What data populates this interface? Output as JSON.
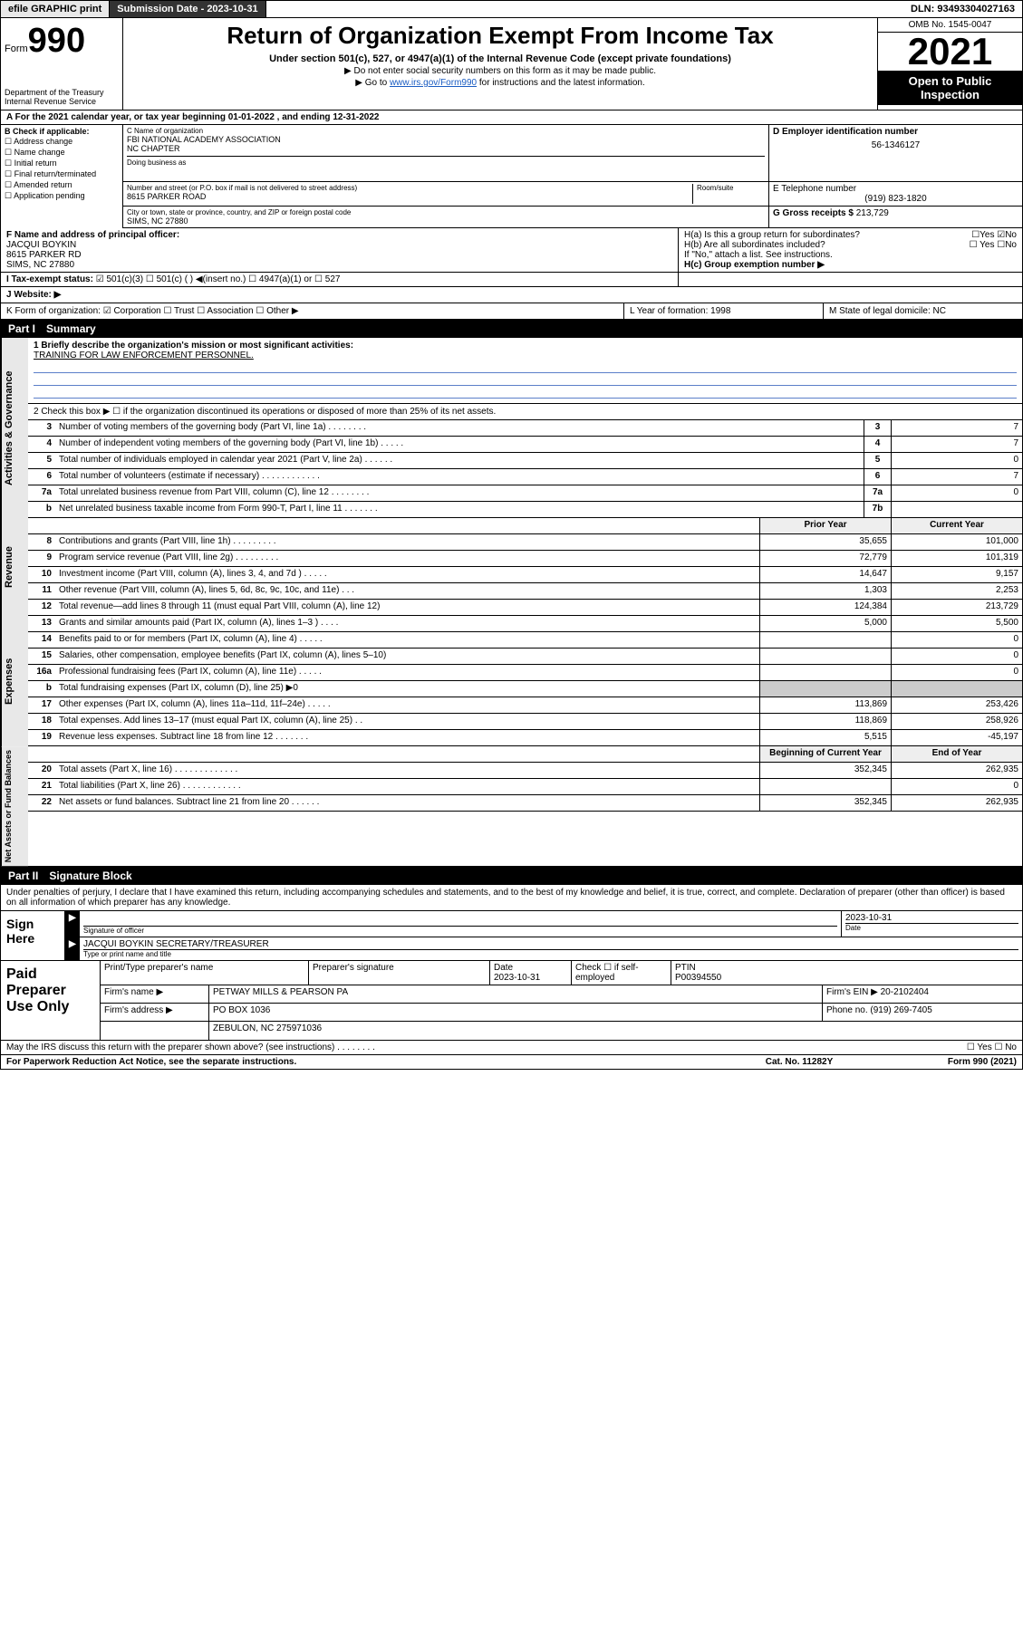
{
  "header_bar": {
    "efile": "efile GRAPHIC print",
    "sub_label": "Submission Date - 2023-10-31",
    "dln": "DLN: 93493304027163"
  },
  "form_head": {
    "form_word": "Form",
    "form_num": "990",
    "dept": "Department of the Treasury",
    "irs": "Internal Revenue Service",
    "title": "Return of Organization Exempt From Income Tax",
    "subtitle": "Under section 501(c), 527, or 4947(a)(1) of the Internal Revenue Code (except private foundations)",
    "note1": "▶ Do not enter social security numbers on this form as it may be made public.",
    "note2_a": "▶ Go to ",
    "note2_link": "www.irs.gov/Form990",
    "note2_b": " for instructions and the latest information.",
    "omb": "OMB No. 1545-0047",
    "year": "2021",
    "inspect": "Open to Public Inspection"
  },
  "row_a": "A For the 2021 calendar year, or tax year beginning 01-01-2022  , and ending 12-31-2022",
  "section_b": {
    "label": "B Check if applicable:",
    "items": [
      "☐ Address change",
      "☐ Name change",
      "☐ Initial return",
      "☐ Final return/terminated",
      "☐ Amended return",
      "☐ Application pending"
    ]
  },
  "section_c": {
    "name_label": "C Name of organization",
    "name": "FBI NATIONAL ACADEMY ASSOCIATION",
    "name2": "NC CHAPTER",
    "dba_label": "Doing business as",
    "addr_label": "Number and street (or P.O. box if mail is not delivered to street address)",
    "room_label": "Room/suite",
    "addr": "8615 PARKER ROAD",
    "city_label": "City or town, state or province, country, and ZIP or foreign postal code",
    "city": "SIMS, NC  27880"
  },
  "section_de": {
    "d_label": "D Employer identification number",
    "d_val": "56-1346127",
    "e_label": "E Telephone number",
    "e_val": "(919) 823-1820",
    "g_label": "G Gross receipts $",
    "g_val": "213,729"
  },
  "row_f": {
    "label": "F  Name and address of principal officer:",
    "name": "JACQUI BOYKIN",
    "addr": "8615 PARKER RD",
    "city": "SIMS, NC  27880"
  },
  "row_h": {
    "ha": "H(a)  Is this a group return for subordinates?",
    "ha_yes": "☐Yes",
    "ha_no": "☑No",
    "hb": "H(b)  Are all subordinates included?",
    "hb_yes": "☐ Yes",
    "hb_no": "☐No",
    "hb_note": "If \"No,\" attach a list. See instructions.",
    "hc": "H(c)  Group exemption number ▶"
  },
  "row_i": {
    "label": "I    Tax-exempt status:",
    "opts": "☑ 501(c)(3)   ☐  501(c) (  ) ◀(insert no.)    ☐ 4947(a)(1) or  ☐ 527"
  },
  "row_j": "J    Website: ▶",
  "row_k": "K Form of organization:  ☑ Corporation ☐ Trust ☐ Association ☐ Other ▶",
  "row_l": "L Year of formation: 1998",
  "row_m": "M State of legal domicile: NC",
  "part1_head": {
    "p": "Part I",
    "t": "Summary"
  },
  "mission": {
    "q": "1    Briefly describe the organization's mission or most significant activities:",
    "a": "TRAINING FOR LAW ENFORCEMENT PERSONNEL."
  },
  "line2": "2    Check this box ▶ ☐  if the organization discontinued its operations or disposed of more than 25% of its net assets.",
  "gov_lines": [
    {
      "n": "3",
      "d": "Number of voting members of the governing body (Part VI, line 1a)   .    .    .    .    .    .    .    .",
      "b": "3",
      "v": "7"
    },
    {
      "n": "4",
      "d": "Number of independent voting members of the governing body (Part VI, line 1b)   .    .    .    .    .",
      "b": "4",
      "v": "7"
    },
    {
      "n": "5",
      "d": "Total number of individuals employed in calendar year 2021 (Part V, line 2a)   .    .    .    .    .    .",
      "b": "5",
      "v": "0"
    },
    {
      "n": "6",
      "d": "Total number of volunteers (estimate if necessary)   .    .    .    .    .    .    .    .    .    .    .    .",
      "b": "6",
      "v": "7"
    },
    {
      "n": "7a",
      "d": "Total unrelated business revenue from Part VIII, column (C), line 12   .    .    .    .    .    .    .    .",
      "b": "7a",
      "v": "0"
    },
    {
      "n": "b",
      "d": "Net unrelated business taxable income from Form 990-T, Part I, line 11   .    .    .    .    .    .    .",
      "b": "7b",
      "v": ""
    }
  ],
  "col_heads": {
    "prior": "Prior Year",
    "curr": "Current Year"
  },
  "rev_lines": [
    {
      "n": "8",
      "d": "Contributions and grants (Part VIII, line 1h)   .    .    .    .    .    .    .    .    .",
      "p": "35,655",
      "c": "101,000"
    },
    {
      "n": "9",
      "d": "Program service revenue (Part VIII, line 2g)   .    .    .    .    .    .    .    .    .",
      "p": "72,779",
      "c": "101,319"
    },
    {
      "n": "10",
      "d": "Investment income (Part VIII, column (A), lines 3, 4, and 7d )   .    .    .    .    .",
      "p": "14,647",
      "c": "9,157"
    },
    {
      "n": "11",
      "d": "Other revenue (Part VIII, column (A), lines 5, 6d, 8c, 9c, 10c, and 11e)   .    .    .",
      "p": "1,303",
      "c": "2,253"
    },
    {
      "n": "12",
      "d": "Total revenue—add lines 8 through 11 (must equal Part VIII, column (A), line 12)",
      "p": "124,384",
      "c": "213,729"
    }
  ],
  "exp_lines": [
    {
      "n": "13",
      "d": "Grants and similar amounts paid (Part IX, column (A), lines 1–3 )   .    .    .    .",
      "p": "5,000",
      "c": "5,500"
    },
    {
      "n": "14",
      "d": "Benefits paid to or for members (Part IX, column (A), line 4)   .    .    .    .    .",
      "p": "",
      "c": "0"
    },
    {
      "n": "15",
      "d": "Salaries, other compensation, employee benefits (Part IX, column (A), lines 5–10)",
      "p": "",
      "c": "0"
    },
    {
      "n": "16a",
      "d": "Professional fundraising fees (Part IX, column (A), line 11e)   .    .    .    .    .",
      "p": "",
      "c": "0"
    },
    {
      "n": "b",
      "d": "Total fundraising expenses (Part IX, column (D), line 25) ▶0",
      "p": "shade",
      "c": "shade"
    },
    {
      "n": "17",
      "d": "Other expenses (Part IX, column (A), lines 11a–11d, 11f–24e)   .    .    .    .    .",
      "p": "113,869",
      "c": "253,426"
    },
    {
      "n": "18",
      "d": "Total expenses. Add lines 13–17 (must equal Part IX, column (A), line 25)   .    .",
      "p": "118,869",
      "c": "258,926"
    },
    {
      "n": "19",
      "d": "Revenue less expenses. Subtract line 18 from line 12   .    .    .    .    .    .    .",
      "p": "5,515",
      "c": "-45,197"
    }
  ],
  "na_heads": {
    "prior": "Beginning of Current Year",
    "curr": "End of Year"
  },
  "na_lines": [
    {
      "n": "20",
      "d": "Total assets (Part X, line 16)   .    .    .    .    .    .    .    .    .    .    .    .    .",
      "p": "352,345",
      "c": "262,935"
    },
    {
      "n": "21",
      "d": "Total liabilities (Part X, line 26)   .    .    .    .    .    .    .    .    .    .    .    .",
      "p": "",
      "c": "0"
    },
    {
      "n": "22",
      "d": "Net assets or fund balances. Subtract line 21 from line 20   .    .    .    .    .    .",
      "p": "352,345",
      "c": "262,935"
    }
  ],
  "vtabs": {
    "gov": "Activities & Governance",
    "rev": "Revenue",
    "exp": "Expenses",
    "na": "Net Assets or Fund Balances"
  },
  "part2_head": {
    "p": "Part II",
    "t": "Signature Block"
  },
  "sig_decl": "Under penalties of perjury, I declare that I have examined this return, including accompanying schedules and statements, and to the best of my knowledge and belief, it is true, correct, and complete. Declaration of preparer (other than officer) is based on all information of which preparer has any knowledge.",
  "sign_here": "Sign Here",
  "sig_officer": "Signature of officer",
  "sig_date": "2023-10-31",
  "sig_date_lbl": "Date",
  "sig_name": "JACQUI BOYKIN  SECRETARY/TREASURER",
  "sig_name_lbl": "Type or print name and title",
  "paid_label": "Paid Preparer Use Only",
  "paid": {
    "h1": "Print/Type preparer's name",
    "h2": "Preparer's signature",
    "h3": "Date",
    "h3v": "2023-10-31",
    "h4": "Check ☐ if self-employed",
    "h5": "PTIN",
    "h5v": "P00394550",
    "firm_lbl": "Firm's name    ▶",
    "firm": "PETWAY MILLS & PEARSON PA",
    "ein_lbl": "Firm's EIN ▶",
    "ein": "20-2102404",
    "addr_lbl": "Firm's address ▶",
    "addr1": "PO BOX 1036",
    "addr2": "ZEBULON, NC  275971036",
    "phone_lbl": "Phone no.",
    "phone": "(919) 269-7405"
  },
  "discuss": "May the IRS discuss this return with the preparer shown above? (see instructions)   .    .    .    .    .    .    .    .",
  "discuss_yn": "☐ Yes   ☐ No",
  "footer": {
    "left": "For Paperwork Reduction Act Notice, see the separate instructions.",
    "mid": "Cat. No. 11282Y",
    "right": "Form 990 (2021)"
  }
}
